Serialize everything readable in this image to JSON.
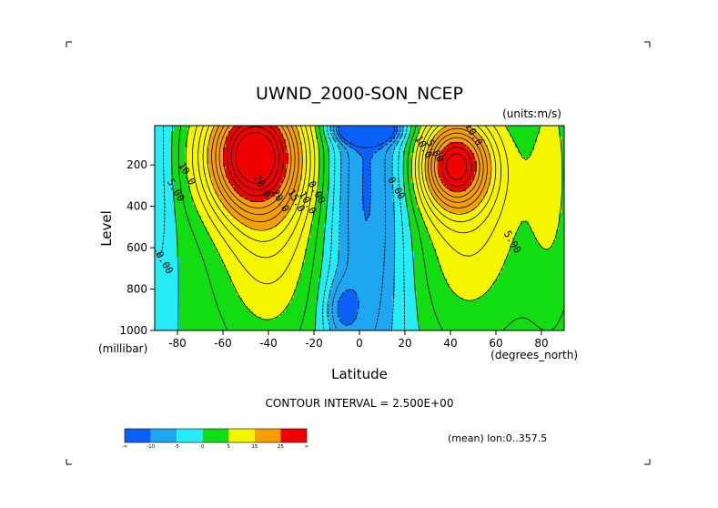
{
  "chart_data": {
    "type": "heatmap",
    "title": "UWND_2000-SON_NCEP",
    "units_label": "(units:m/s)",
    "xlabel": "Latitude",
    "ylabel": "Level",
    "x_units": "(degrees_north)",
    "y_units": "(millibar)",
    "x_range": [
      -90,
      90
    ],
    "y_range": [
      1000,
      10
    ],
    "x_ticks": [
      -80,
      -60,
      -40,
      -20,
      0,
      20,
      40,
      60,
      80
    ],
    "y_ticks": [
      200,
      400,
      600,
      800,
      1000
    ],
    "contour_interval_text": "CONTOUR INTERVAL = 2.500E+00",
    "mean_text": "(mean) lon:0..357.5",
    "color_levels": [
      {
        "label": "-∞",
        "color": "#0b60f5"
      },
      {
        "label": "-10",
        "color": "#1ea7f0"
      },
      {
        "label": "-5",
        "color": "#26ecf5"
      },
      {
        "label": "0",
        "color": "#12dc12"
      },
      {
        "label": "5",
        "color": "#f5f500"
      },
      {
        "label": "15",
        "color": "#f5a000"
      },
      {
        "label": "25",
        "color": "#f00000"
      },
      {
        "label": "∞",
        "color": ""
      }
    ],
    "contour_labels": [
      {
        "text": "10.0",
        "lat": -77,
        "p": 250
      },
      {
        "text": "5.00",
        "lat": -82,
        "p": 330
      },
      {
        "text": "0.00",
        "lat": -87,
        "p": 680
      },
      {
        "text": "20.0",
        "lat": -44,
        "p": 310
      },
      {
        "text": "20.0",
        "lat": -36,
        "p": 380
      },
      {
        "text": "15.0",
        "lat": -29,
        "p": 380
      },
      {
        "text": "10.0",
        "lat": -24,
        "p": 390
      },
      {
        "text": "0.00",
        "lat": -20,
        "p": 340
      },
      {
        "text": "0.00",
        "lat": 15,
        "p": 320
      },
      {
        "text": "10.0",
        "lat": 27,
        "p": 120
      },
      {
        "text": "5.00",
        "lat": 32,
        "p": 140
      },
      {
        "text": "10.0",
        "lat": 49,
        "p": 60
      },
      {
        "text": "5.00",
        "lat": 66,
        "p": 580
      }
    ]
  }
}
